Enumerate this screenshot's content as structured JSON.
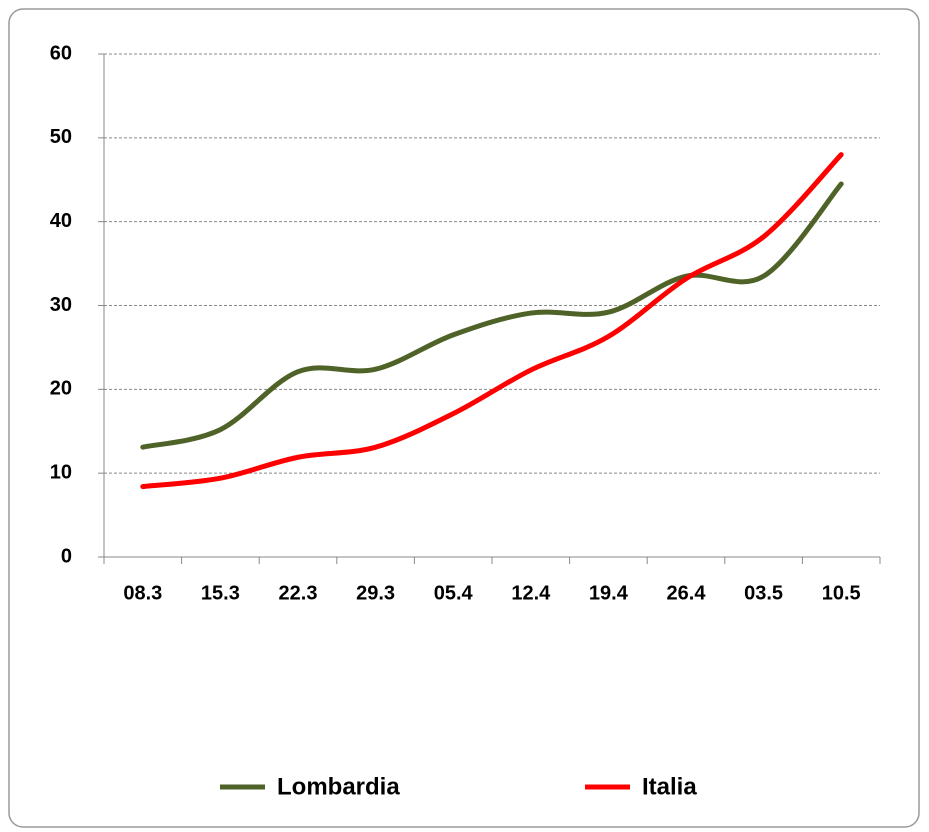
{
  "chart_data": {
    "type": "line",
    "categories": [
      "08.3",
      "15.3",
      "22.3",
      "29.3",
      "05.4",
      "12.4",
      "19.4",
      "26.4",
      "03.5",
      "10.5"
    ],
    "series": [
      {
        "name": "Lombardia",
        "color": "#4f6228",
        "values": [
          13.1,
          15.2,
          22.1,
          22.4,
          26.5,
          29.1,
          29.2,
          33.5,
          33.5,
          44.5
        ]
      },
      {
        "name": "Italia",
        "color": "#ff0000",
        "values": [
          8.4,
          9.4,
          11.9,
          13.1,
          17.1,
          22.3,
          26.3,
          33.2,
          38.2,
          48.0
        ]
      }
    ],
    "ylim": [
      0,
      60
    ],
    "yticks": [
      0,
      10,
      20,
      30,
      40,
      50,
      60
    ],
    "grid": true,
    "legend": "bottom",
    "smooth": true
  }
}
